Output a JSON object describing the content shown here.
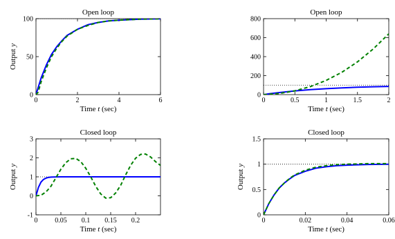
{
  "chart_data": [
    {
      "type": "line",
      "title": "Open loop",
      "xlabel": "Time t (sec)",
      "ylabel": "Output y",
      "xlim": [
        0,
        6
      ],
      "ylim": [
        0,
        100
      ],
      "xticks": [
        0,
        2,
        4,
        6
      ],
      "yticks": [
        0,
        50,
        100
      ],
      "series": [
        {
          "style": "dotted",
          "color": "#000000",
          "x": [
            0,
            6
          ],
          "y": [
            100,
            100
          ]
        },
        {
          "style": "solid",
          "color": "#0000ff",
          "x": [
            0,
            0.25,
            0.5,
            0.75,
            1,
            1.25,
            1.5,
            2,
            2.5,
            3,
            3.5,
            4,
            5,
            6
          ],
          "y": [
            0,
            22,
            39,
            53,
            63,
            71,
            78,
            86,
            92,
            95,
            97,
            98,
            99.3,
            99.8
          ]
        },
        {
          "style": "dashed",
          "color": "#008000",
          "x": [
            0,
            0.1,
            0.25,
            0.5,
            0.75,
            1,
            1.25,
            1.5,
            2,
            2.5,
            3,
            3.5,
            4,
            5,
            6
          ],
          "y": [
            0,
            3,
            17,
            35,
            50,
            61,
            70,
            77,
            86,
            91,
            95,
            97,
            98,
            99.3,
            99.8
          ]
        }
      ]
    },
    {
      "type": "line",
      "title": "Open loop",
      "xlabel": "Time t (sec)",
      "ylabel": "",
      "xlim": [
        0,
        2
      ],
      "ylim": [
        0,
        800
      ],
      "xticks": [
        0,
        0.5,
        1,
        1.5,
        2
      ],
      "yticks": [
        0,
        200,
        400,
        600,
        800
      ],
      "series": [
        {
          "style": "dotted",
          "color": "#000000",
          "x": [
            0,
            2
          ],
          "y": [
            100,
            100
          ]
        },
        {
          "style": "solid",
          "color": "#0000ff",
          "x": [
            0,
            0.1,
            0.25,
            0.5,
            0.75,
            1,
            1.25,
            1.5,
            1.75,
            2
          ],
          "y": [
            0,
            10,
            22,
            39,
            53,
            63,
            71,
            78,
            83,
            86
          ]
        },
        {
          "style": "dashed",
          "color": "#008000",
          "x": [
            0,
            0.25,
            0.5,
            0.75,
            1,
            1.25,
            1.5,
            1.75,
            2
          ],
          "y": [
            0,
            12,
            40,
            85,
            150,
            235,
            345,
            480,
            640
          ]
        }
      ]
    },
    {
      "type": "line",
      "title": "Closed loop",
      "xlabel": "Time t (sec)",
      "ylabel": "Output y",
      "xlim": [
        0,
        0.25
      ],
      "ylim": [
        -1,
        3
      ],
      "xticks": [
        0,
        0.05,
        0.1,
        0.15,
        0.2
      ],
      "yticks": [
        -1,
        0,
        1,
        2,
        3
      ],
      "series": [
        {
          "style": "dotted",
          "color": "#000000",
          "x": [
            0,
            0.25
          ],
          "y": [
            1,
            1
          ]
        },
        {
          "style": "solid",
          "color": "#0000ff",
          "x": [
            0,
            0.005,
            0.01,
            0.015,
            0.02,
            0.025,
            0.03,
            0.04,
            0.05,
            0.25
          ],
          "y": [
            0,
            0.45,
            0.72,
            0.86,
            0.93,
            0.97,
            0.985,
            0.997,
            1,
            1
          ]
        },
        {
          "style": "dashed",
          "color": "#008000",
          "x": [
            0,
            0.01,
            0.02,
            0.03,
            0.04,
            0.05,
            0.06,
            0.07,
            0.08,
            0.09,
            0.1,
            0.11,
            0.12,
            0.13,
            0.14,
            0.15,
            0.16,
            0.17,
            0.18,
            0.19,
            0.2,
            0.21,
            0.22,
            0.23,
            0.24,
            0.25
          ],
          "y": [
            0,
            0.03,
            0.2,
            0.5,
            0.95,
            1.4,
            1.75,
            1.95,
            1.97,
            1.8,
            1.45,
            1.0,
            0.5,
            0.1,
            -0.12,
            -0.1,
            0.15,
            0.55,
            1.1,
            1.6,
            1.98,
            2.18,
            2.2,
            2.05,
            1.8,
            1.6
          ]
        }
      ]
    },
    {
      "type": "line",
      "title": "Closed loop",
      "xlabel": "Time t (sec)",
      "ylabel": "Output y",
      "xlim": [
        0,
        0.06
      ],
      "ylim": [
        0,
        1.5
      ],
      "xticks": [
        0,
        0.02,
        0.04,
        0.06
      ],
      "yticks": [
        0,
        0.5,
        1,
        1.5
      ],
      "series": [
        {
          "style": "dotted",
          "color": "#000000",
          "x": [
            0,
            0.06
          ],
          "y": [
            1,
            1
          ]
        },
        {
          "style": "solid",
          "color": "#0000ff",
          "x": [
            0,
            0.0025,
            0.005,
            0.0075,
            0.01,
            0.0125,
            0.015,
            0.02,
            0.025,
            0.03,
            0.035,
            0.04,
            0.05,
            0.06
          ],
          "y": [
            0,
            0.22,
            0.39,
            0.53,
            0.63,
            0.71,
            0.78,
            0.86,
            0.92,
            0.95,
            0.97,
            0.98,
            0.993,
            0.998
          ]
        },
        {
          "style": "dashed",
          "color": "#008000",
          "x": [
            0,
            0.0025,
            0.005,
            0.0075,
            0.01,
            0.0125,
            0.015,
            0.02,
            0.025,
            0.03,
            0.035,
            0.04,
            0.05,
            0.06
          ],
          "y": [
            0,
            0.22,
            0.39,
            0.53,
            0.63,
            0.72,
            0.79,
            0.88,
            0.94,
            0.97,
            0.99,
            1.0,
            1.01,
            1.01
          ]
        }
      ]
    }
  ]
}
